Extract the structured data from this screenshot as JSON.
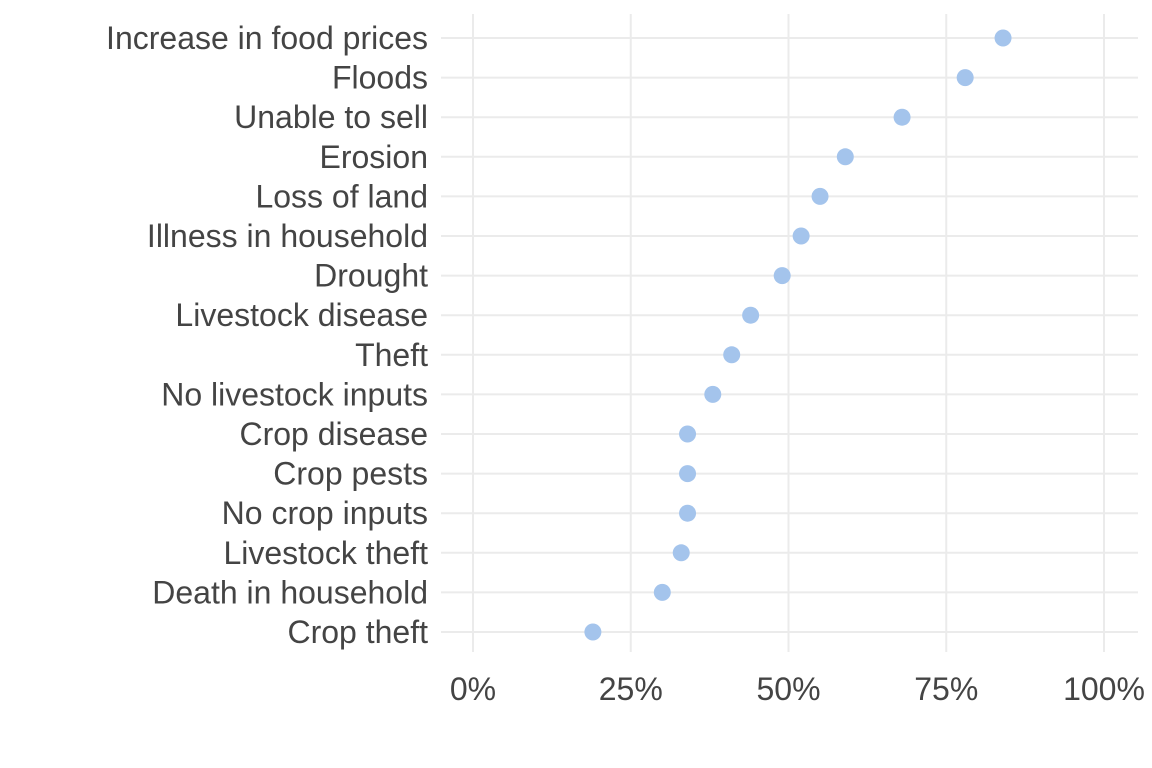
{
  "chart_data": {
    "type": "scatter",
    "title": "",
    "xlabel": "",
    "ylabel": "",
    "xlim": [
      0,
      1
    ],
    "x_ticks": [
      0,
      0.25,
      0.5,
      0.75,
      1.0
    ],
    "x_tick_labels": [
      "0%",
      "25%",
      "50%",
      "75%",
      "100%"
    ],
    "grid": true,
    "legend": "none",
    "point_color": "#a4c4ec",
    "categories": [
      "Increase in food prices",
      "Floods",
      "Unable to sell",
      "Erosion",
      "Loss of land",
      "Illness in household",
      "Drought",
      "Livestock disease",
      "Theft",
      "No livestock inputs",
      "Crop disease",
      "Crop pests",
      "No crop inputs",
      "Livestock theft",
      "Death in household",
      "Crop theft"
    ],
    "values": [
      0.84,
      0.78,
      0.68,
      0.59,
      0.55,
      0.52,
      0.49,
      0.44,
      0.41,
      0.38,
      0.34,
      0.34,
      0.34,
      0.33,
      0.3,
      0.19
    ]
  }
}
